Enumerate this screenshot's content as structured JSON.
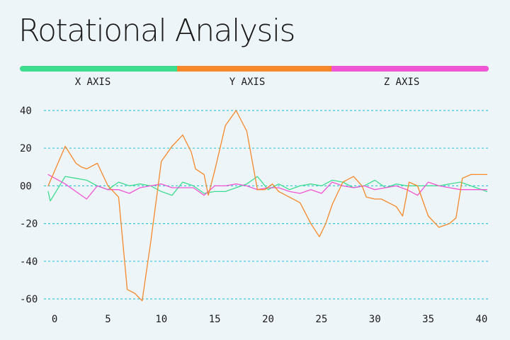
{
  "chart_data": {
    "type": "line",
    "title": "Rotational Analysis",
    "xlabel": "",
    "ylabel": "",
    "xlim": [
      -1,
      40.8
    ],
    "ylim": [
      -63,
      46
    ],
    "grid": true,
    "x_ticks": [
      0,
      5,
      10,
      15,
      20,
      25,
      30,
      35,
      40
    ],
    "x_tick_labels": [
      "0",
      "5",
      "10",
      "15",
      "20",
      "25",
      "30",
      "35",
      "40"
    ],
    "y_ticks": [
      40,
      20,
      0,
      -20,
      -40,
      -60
    ],
    "y_tick_labels": [
      "40",
      "20",
      "00",
      "-20",
      "-40",
      "-60"
    ],
    "legend_position": "top",
    "series": [
      {
        "name": "X AXIS",
        "color": "#3ddc8f",
        "x": [
          -0.6,
          -0.4,
          1,
          2,
          3,
          4,
          5,
          6,
          7,
          8,
          9,
          10,
          11,
          12,
          13,
          14,
          15,
          16,
          17,
          18,
          19,
          20,
          21,
          22,
          23,
          24,
          25,
          26,
          27,
          28,
          29,
          30,
          31,
          32,
          33,
          34,
          35,
          36,
          37,
          38,
          39,
          40.5
        ],
        "values": [
          -3,
          -8,
          5,
          4,
          3,
          0,
          -2,
          2,
          0,
          1,
          0,
          -3,
          -5,
          2,
          0,
          -4,
          -3,
          -3,
          -1,
          1,
          5,
          -2,
          1,
          -2,
          0,
          1,
          0,
          3,
          2,
          -1,
          0,
          3,
          -1,
          1,
          0,
          0,
          0,
          0,
          1,
          2,
          0,
          -3
        ]
      },
      {
        "name": "Y AXIS",
        "color": "#f5882a",
        "x": [
          -0.6,
          1,
          2,
          2.5,
          3,
          4,
          5,
          6,
          6.8,
          7.5,
          8.2,
          9,
          10,
          11,
          12,
          12.8,
          13.2,
          14,
          14.4,
          15,
          16,
          17,
          18,
          19,
          19.7,
          20.4,
          21,
          22,
          23,
          24,
          24.8,
          25.4,
          26,
          27,
          28,
          28.8,
          29.2,
          30,
          30.6,
          31.3,
          32,
          32.6,
          33.2,
          34,
          35,
          36,
          37,
          37.6,
          38.2,
          39,
          40.5
        ],
        "values": [
          0,
          21,
          12,
          10,
          9,
          12,
          0,
          -6,
          -55,
          -57,
          -61,
          -30,
          13,
          21,
          27,
          18,
          9,
          6,
          -5,
          8,
          32,
          40,
          29,
          -2,
          -2,
          1,
          -3,
          -6,
          -9,
          -20,
          -27,
          -20,
          -10,
          2,
          5,
          0,
          -6,
          -7,
          -7,
          -9,
          -11,
          -16,
          2,
          0,
          -16,
          -22,
          -20,
          -17,
          4,
          6,
          6
        ]
      },
      {
        "name": "Z AXIS",
        "color": "#f055d4",
        "x": [
          -0.6,
          1,
          2,
          3,
          4,
          5,
          6,
          7,
          8,
          9,
          10,
          11,
          12,
          13,
          14,
          15,
          16,
          17,
          18,
          19,
          20,
          21,
          22,
          23,
          24,
          25,
          26,
          27,
          28,
          29,
          30,
          31,
          32,
          33,
          34,
          35,
          36,
          37,
          38,
          39,
          40.5
        ],
        "values": [
          6,
          1,
          -3,
          -7,
          0,
          -2,
          -2,
          -4,
          -1,
          0,
          1,
          -1,
          -1,
          -1,
          -5,
          0,
          0,
          1,
          0,
          -2,
          -1,
          -1,
          -3,
          -4,
          -2,
          -4,
          2,
          0,
          -1,
          0,
          -2,
          -1,
          0,
          -2,
          -5,
          2,
          0,
          -1,
          -2,
          -2,
          -2
        ]
      }
    ]
  }
}
